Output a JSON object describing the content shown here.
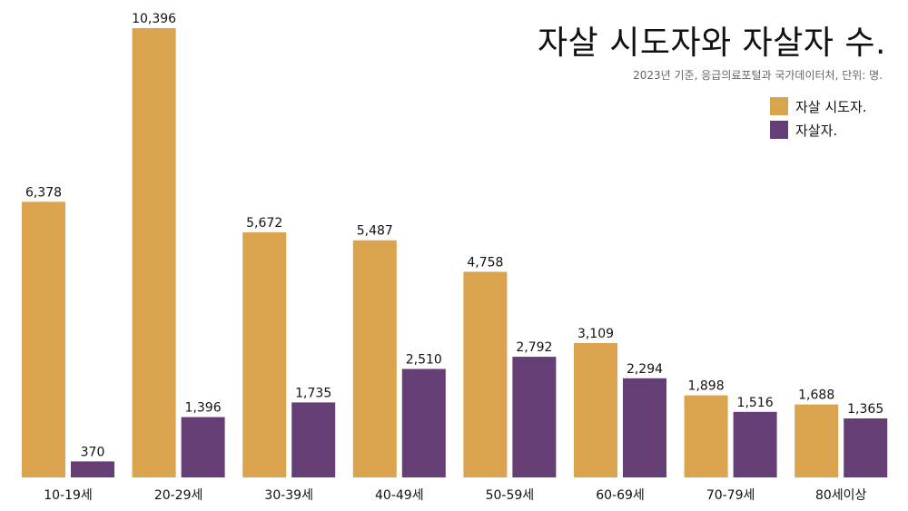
{
  "chart_data": {
    "type": "bar",
    "title": "자살 시도자와 자살자 수.",
    "subtitle": "2023년 기준, 응급의료포털과 국가데이터처, 단위: 명.",
    "categories": [
      "10-19세",
      "20-29세",
      "30-39세",
      "40-49세",
      "50-59세",
      "60-69세",
      "70-79세",
      "80세이상"
    ],
    "series": [
      {
        "name": "자살 시도자.",
        "color": "#DCA34F",
        "values": [
          6378,
          10396,
          5672,
          5487,
          4758,
          3109,
          1898,
          1688
        ],
        "labels": [
          "6,378",
          "10,396",
          "5,672",
          "5,487",
          "4,758",
          "3,109",
          "1,898",
          "1,688"
        ]
      },
      {
        "name": "자살자.",
        "color": "#663E76",
        "values": [
          370,
          1396,
          1735,
          2510,
          2792,
          2294,
          1516,
          1365
        ],
        "labels": [
          "370",
          "1,396",
          "1,735",
          "2,510",
          "2,792",
          "2,294",
          "1,516",
          "1,365"
        ]
      }
    ],
    "ylim": [
      0,
      10396
    ],
    "grid": false,
    "legend_position": "top-right"
  }
}
